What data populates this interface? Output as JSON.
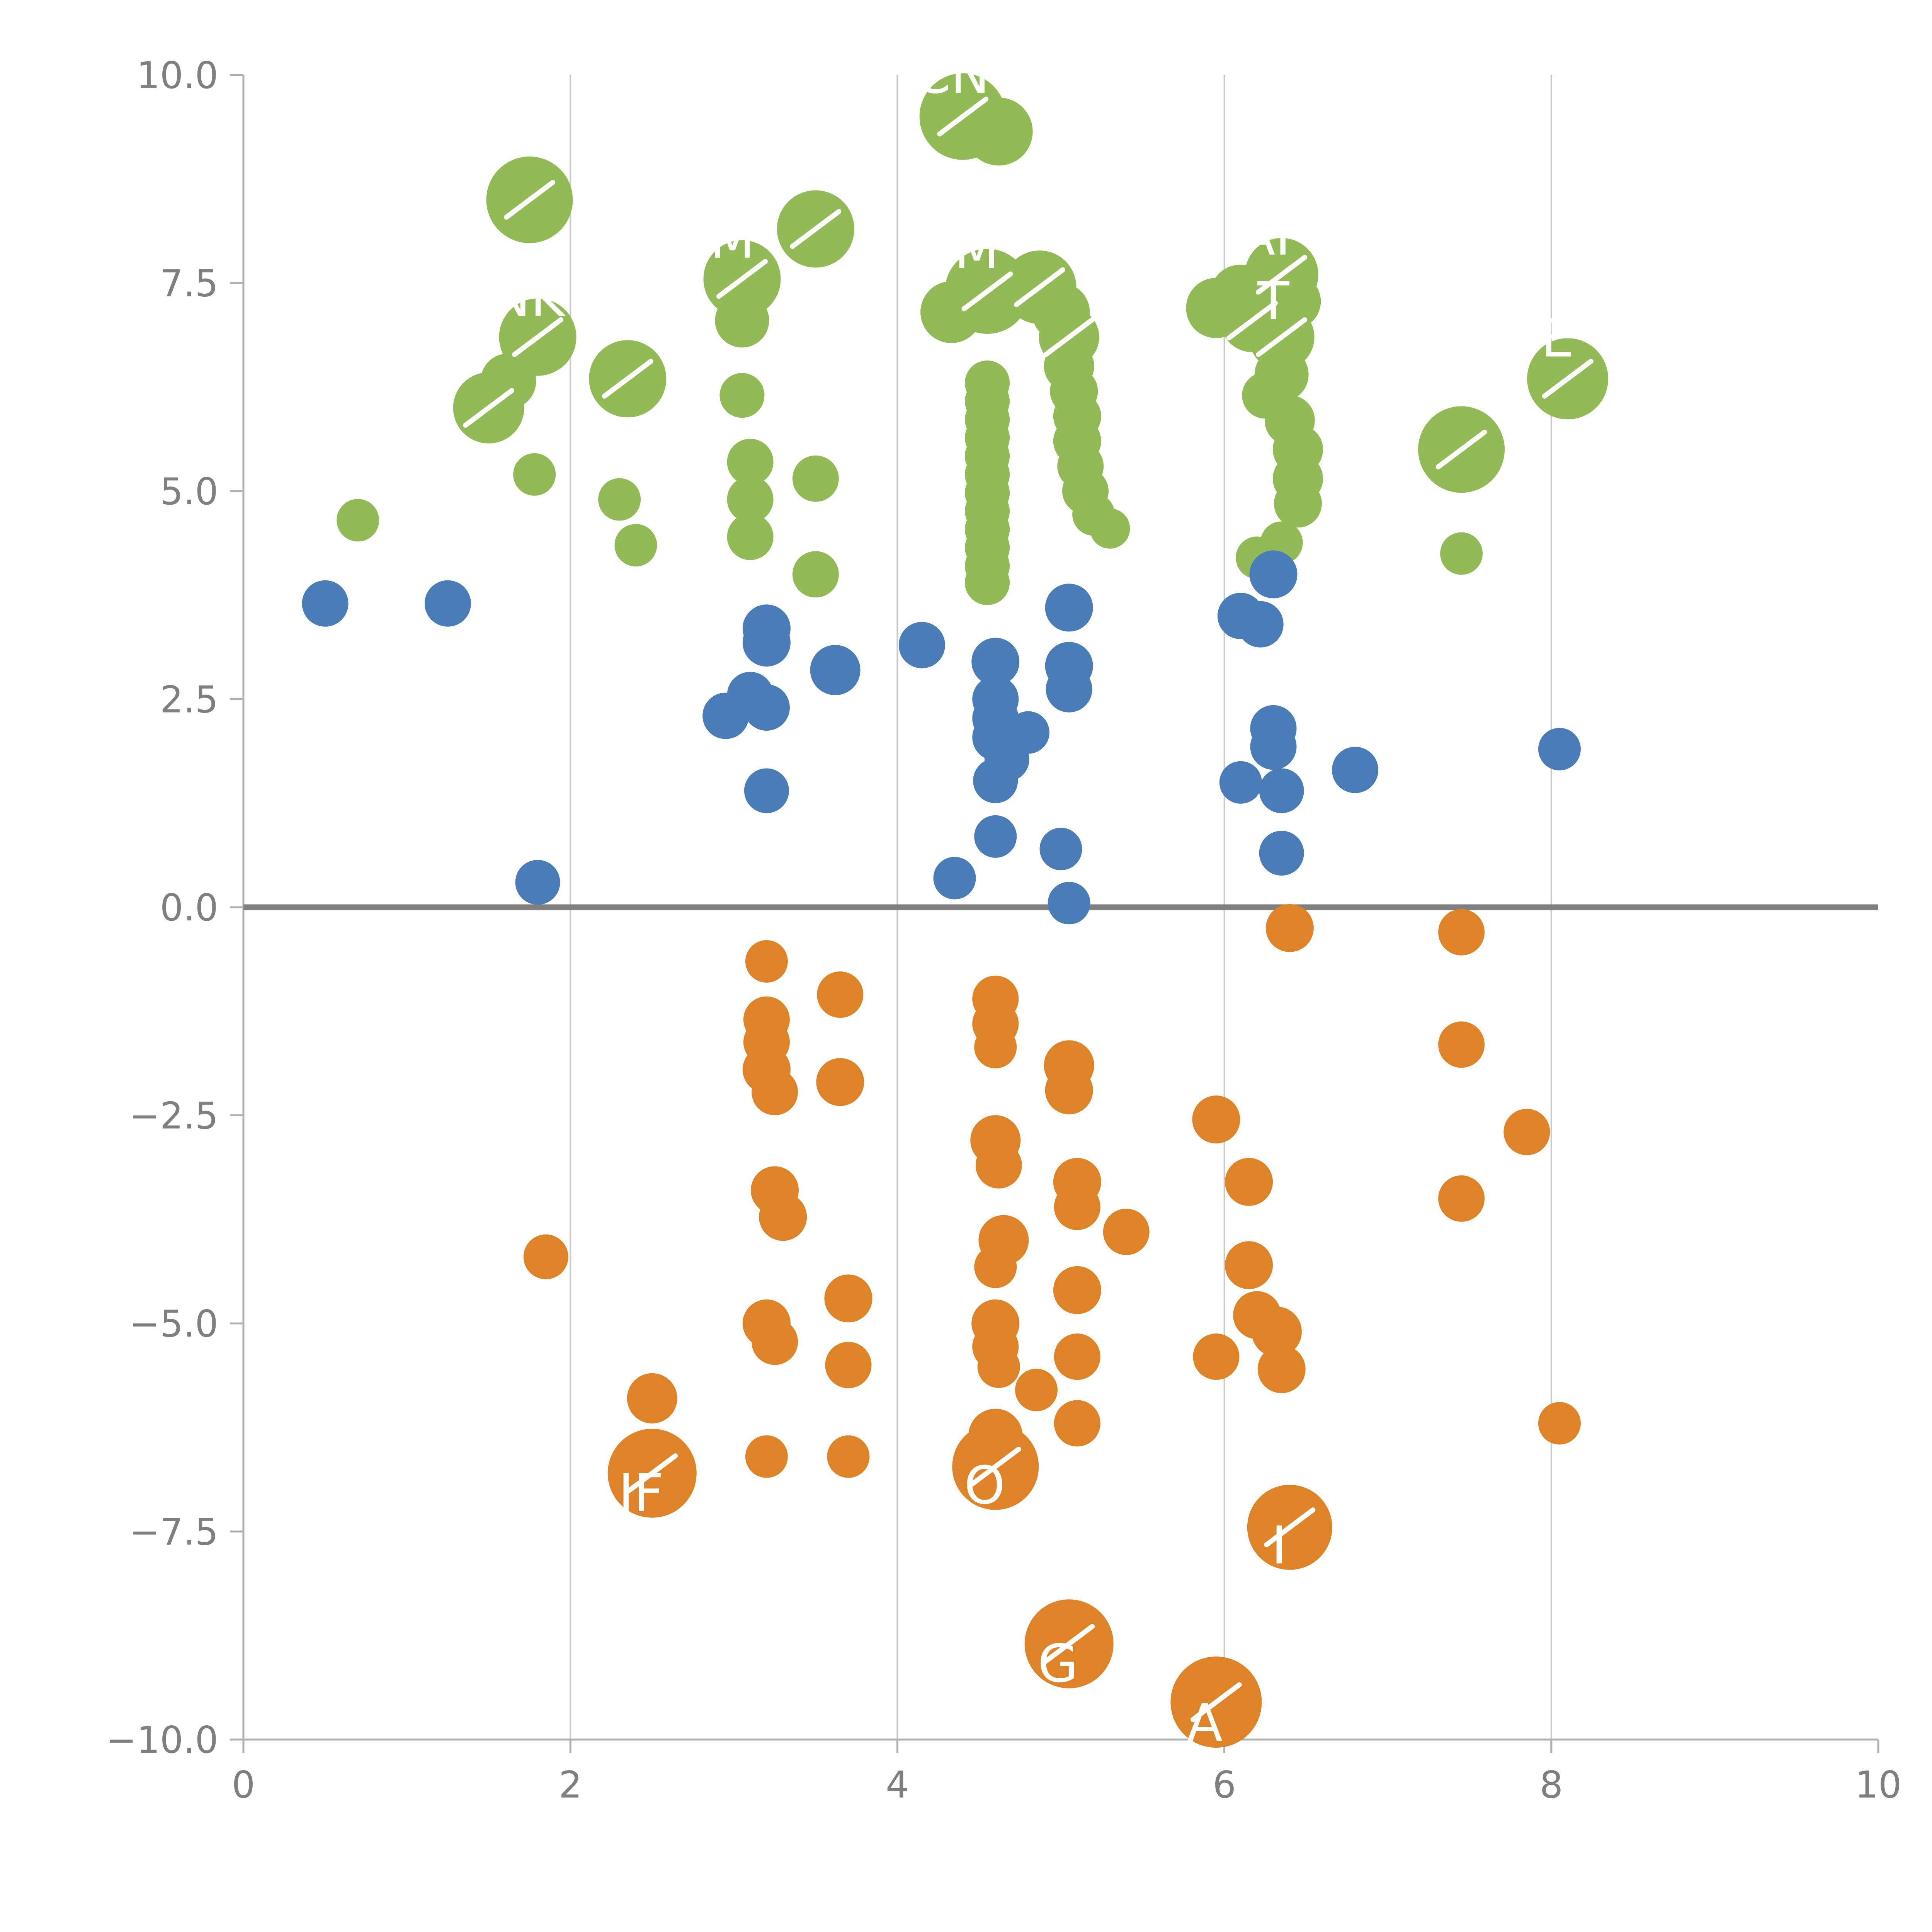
{
  "page": {
    "background": "#ffffff"
  },
  "chart_data": {
    "type": "scatter",
    "title": "",
    "xlabel": "",
    "ylabel": "",
    "xlim": [
      0,
      10
    ],
    "ylim": [
      -10,
      10
    ],
    "x_ticks": [
      {
        "value": 0,
        "label": "0"
      },
      {
        "value": 2,
        "label": "2"
      },
      {
        "value": 4,
        "label": "4"
      },
      {
        "value": 6,
        "label": "6"
      },
      {
        "value": 8,
        "label": "8"
      },
      {
        "value": 10,
        "label": "10"
      }
    ],
    "y_ticks": [
      {
        "value": 10.0,
        "label": "10.0"
      },
      {
        "value": 7.5,
        "label": "7.5"
      },
      {
        "value": 5.0,
        "label": "5.0"
      },
      {
        "value": 2.5,
        "label": "2.5"
      },
      {
        "value": 0.0,
        "label": "0.0"
      },
      {
        "value": -2.5,
        "label": "−2.5"
      },
      {
        "value": -5.0,
        "label": "−5.0"
      },
      {
        "value": -7.5,
        "label": "−7.5"
      },
      {
        "value": -10.0,
        "label": "−10.0"
      }
    ],
    "gridline_x_values": [
      2,
      4,
      6,
      8
    ],
    "grid": "vertical gridlines only",
    "zero_line": {
      "y": 0,
      "color": "#808080"
    },
    "colors": {
      "axis": "#b0b0b0",
      "tick_label": "#7f7f7f",
      "gridline": "#c9c9c9",
      "point_label": "#ffffff"
    },
    "legend": "none",
    "point_format": [
      "x",
      "y",
      "radius_px",
      "label",
      "leader_line"
    ],
    "series": [
      {
        "name": "green-series",
        "color": "#92ba56",
        "points": [
          [
            0.7,
            4.65,
            55
          ],
          [
            1.5,
            6.0,
            92,
            null,
            1
          ],
          [
            1.62,
            6.32,
            72
          ],
          [
            1.75,
            8.5,
            112,
            null,
            1
          ],
          [
            1.8,
            6.85,
            100,
            "NK",
            1
          ],
          [
            1.78,
            5.2,
            55
          ],
          [
            2.35,
            6.35,
            100,
            null,
            1
          ],
          [
            2.3,
            4.9,
            55
          ],
          [
            2.4,
            4.35,
            55
          ],
          [
            3.05,
            7.55,
            100,
            "M",
            1
          ],
          [
            3.05,
            7.05,
            70
          ],
          [
            3.05,
            6.15,
            58
          ],
          [
            3.1,
            5.35,
            60
          ],
          [
            3.1,
            4.9,
            60
          ],
          [
            3.1,
            4.45,
            60
          ],
          [
            3.5,
            8.15,
            100,
            null,
            1
          ],
          [
            3.5,
            5.15,
            60
          ],
          [
            3.5,
            4.0,
            60
          ],
          [
            4.4,
            9.5,
            112,
            "CN",
            1
          ],
          [
            4.62,
            9.32,
            88
          ],
          [
            4.55,
            7.4,
            110,
            "M",
            1
          ],
          [
            4.33,
            7.15,
            80
          ],
          [
            4.55,
            6.3,
            58
          ],
          [
            4.55,
            6.08,
            58
          ],
          [
            4.55,
            5.86,
            58
          ],
          [
            4.55,
            5.64,
            58
          ],
          [
            4.55,
            5.42,
            58
          ],
          [
            4.55,
            5.2,
            58
          ],
          [
            4.55,
            4.98,
            58
          ],
          [
            4.55,
            4.76,
            58
          ],
          [
            4.55,
            4.54,
            58
          ],
          [
            4.55,
            4.32,
            58
          ],
          [
            4.55,
            4.1,
            58
          ],
          [
            4.55,
            3.9,
            58
          ],
          [
            4.87,
            7.45,
            95,
            null,
            1
          ],
          [
            5.0,
            7.15,
            75
          ],
          [
            5.05,
            6.85,
            78,
            null,
            1
          ],
          [
            5.05,
            6.5,
            65
          ],
          [
            5.08,
            6.2,
            62
          ],
          [
            5.1,
            5.9,
            62
          ],
          [
            5.1,
            5.6,
            62
          ],
          [
            5.12,
            5.3,
            60
          ],
          [
            5.15,
            5.0,
            60
          ],
          [
            5.2,
            4.72,
            55
          ],
          [
            5.3,
            4.55,
            52
          ],
          [
            5.95,
            7.2,
            78
          ],
          [
            6.1,
            7.35,
            80
          ],
          [
            6.17,
            7.05,
            82,
            null,
            1
          ],
          [
            6.35,
            7.6,
            95,
            "AF",
            1
          ],
          [
            6.42,
            7.28,
            72
          ],
          [
            6.35,
            6.85,
            85,
            "T",
            1
          ],
          [
            6.35,
            6.4,
            70
          ],
          [
            6.25,
            6.15,
            60
          ],
          [
            6.4,
            5.85,
            65
          ],
          [
            6.45,
            5.5,
            65
          ],
          [
            6.45,
            5.15,
            65
          ],
          [
            6.45,
            4.85,
            62
          ],
          [
            6.2,
            4.2,
            55
          ],
          [
            6.35,
            4.38,
            55
          ],
          [
            7.45,
            5.5,
            112,
            null,
            1
          ],
          [
            7.45,
            4.25,
            55
          ],
          [
            8.1,
            6.35,
            105,
            "E",
            1
          ]
        ]
      },
      {
        "name": "blue-series",
        "color": "#4a7cb8",
        "points": [
          [
            0.5,
            3.65,
            60
          ],
          [
            1.25,
            3.65,
            60
          ],
          [
            1.8,
            0.3,
            58
          ],
          [
            2.95,
            2.3,
            60
          ],
          [
            3.1,
            2.55,
            60
          ],
          [
            3.2,
            3.35,
            62
          ],
          [
            3.2,
            3.18,
            62
          ],
          [
            3.2,
            2.4,
            60
          ],
          [
            3.2,
            1.4,
            58
          ],
          [
            3.62,
            2.85,
            65
          ],
          [
            4.15,
            3.15,
            60
          ],
          [
            4.35,
            0.35,
            55
          ],
          [
            4.6,
            2.95,
            62
          ],
          [
            4.6,
            2.5,
            60
          ],
          [
            4.6,
            2.27,
            60
          ],
          [
            4.6,
            2.04,
            60
          ],
          [
            4.67,
            1.78,
            58
          ],
          [
            4.6,
            1.52,
            58
          ],
          [
            4.8,
            2.1,
            55
          ],
          [
            4.6,
            0.85,
            55
          ],
          [
            5.05,
            3.6,
            62
          ],
          [
            5.05,
            2.9,
            62
          ],
          [
            5.05,
            2.62,
            60
          ],
          [
            5.0,
            0.7,
            55
          ],
          [
            5.05,
            0.05,
            55
          ],
          [
            6.1,
            3.5,
            60
          ],
          [
            6.22,
            3.4,
            60
          ],
          [
            6.3,
            4.0,
            62
          ],
          [
            6.1,
            1.5,
            55
          ],
          [
            6.3,
            2.15,
            60
          ],
          [
            6.3,
            1.93,
            60
          ],
          [
            6.35,
            1.4,
            58
          ],
          [
            6.35,
            0.65,
            58
          ],
          [
            6.8,
            1.65,
            60
          ],
          [
            8.05,
            1.9,
            55
          ]
        ]
      },
      {
        "name": "orange-series",
        "color": "#df8329",
        "points": [
          [
            1.85,
            -4.2,
            58
          ],
          [
            2.5,
            -5.9,
            65
          ],
          [
            2.5,
            -6.8,
            115,
            "IF",
            1
          ],
          [
            3.2,
            -0.65,
            55
          ],
          [
            3.2,
            -1.35,
            60
          ],
          [
            3.2,
            -1.62,
            60
          ],
          [
            3.2,
            -1.95,
            62
          ],
          [
            3.25,
            -2.22,
            60
          ],
          [
            3.25,
            -3.4,
            62
          ],
          [
            3.3,
            -3.72,
            62
          ],
          [
            3.2,
            -5.0,
            62
          ],
          [
            3.25,
            -5.22,
            60
          ],
          [
            3.2,
            -6.6,
            55
          ],
          [
            3.65,
            -1.05,
            60
          ],
          [
            3.65,
            -2.1,
            62
          ],
          [
            3.7,
            -4.7,
            62
          ],
          [
            3.7,
            -5.5,
            60
          ],
          [
            3.7,
            -6.6,
            55
          ],
          [
            4.6,
            -1.1,
            60
          ],
          [
            4.6,
            -1.4,
            60
          ],
          [
            4.6,
            -1.68,
            55
          ],
          [
            4.6,
            -2.8,
            65
          ],
          [
            4.62,
            -3.1,
            60
          ],
          [
            4.65,
            -4.0,
            65
          ],
          [
            4.6,
            -4.32,
            55
          ],
          [
            4.6,
            -5.0,
            62
          ],
          [
            4.6,
            -5.28,
            60
          ],
          [
            4.62,
            -5.52,
            55
          ],
          [
            4.85,
            -5.8,
            55
          ],
          [
            4.6,
            -6.35,
            70
          ],
          [
            4.6,
            -6.72,
            112,
            "O",
            1
          ],
          [
            5.05,
            -1.9,
            65
          ],
          [
            5.05,
            -2.2,
            62
          ],
          [
            5.1,
            -3.3,
            62
          ],
          [
            5.1,
            -3.6,
            60
          ],
          [
            5.1,
            -4.6,
            62
          ],
          [
            5.1,
            -5.4,
            60
          ],
          [
            5.1,
            -6.2,
            60
          ],
          [
            5.4,
            -3.9,
            60
          ],
          [
            5.05,
            -8.85,
            115,
            "G",
            1
          ],
          [
            5.95,
            -2.55,
            62
          ],
          [
            5.95,
            -9.55,
            118,
            "A",
            1
          ],
          [
            6.15,
            -3.3,
            62
          ],
          [
            6.15,
            -4.3,
            62
          ],
          [
            5.95,
            -5.4,
            60
          ],
          [
            6.2,
            -4.9,
            62
          ],
          [
            6.32,
            -5.1,
            65
          ],
          [
            6.35,
            -5.55,
            62
          ],
          [
            6.4,
            -0.25,
            62
          ],
          [
            6.4,
            -7.45,
            110,
            "I",
            1
          ],
          [
            7.45,
            -0.3,
            60
          ],
          [
            7.45,
            -1.65,
            60
          ],
          [
            7.45,
            -3.5,
            60
          ],
          [
            7.85,
            -2.7,
            60
          ],
          [
            8.05,
            -6.2,
            55
          ]
        ]
      }
    ]
  }
}
